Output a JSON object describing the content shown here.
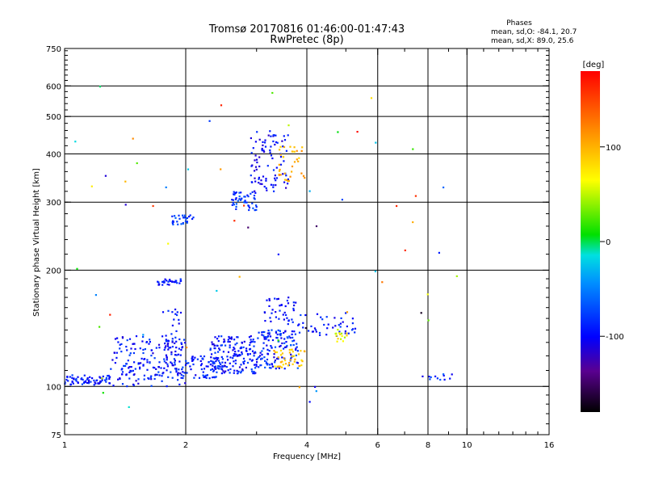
{
  "header": {
    "title_line1": "Tromsø 20170816 01:46:00-01:47:43",
    "title_line2": "RwPretec (8p)",
    "stats_title": "Phases",
    "stats_o": "mean, sd,O: -84.1, 20.7",
    "stats_x": "mean, sd,X: 89.0, 25.6"
  },
  "colorbar": {
    "unit_label": "[deg]",
    "range": [
      -180,
      180
    ],
    "ticks": [
      {
        "value": 100,
        "label": "100"
      },
      {
        "value": 0,
        "label": "0"
      },
      {
        "value": -100,
        "label": "-100"
      }
    ]
  },
  "chart_data": {
    "type": "scatter",
    "title": "Tromsø 20170816 01:46:00-01:47:43 RwPretec (8p)",
    "xlabel": "Frequency [MHz]",
    "ylabel": "Stationary phase Virtual Height [km]",
    "xscale": "log",
    "yscale": "log",
    "xlim": [
      1,
      16
    ],
    "ylim": [
      75,
      750
    ],
    "grid": true,
    "x_ticks": [
      1,
      2,
      4,
      6,
      8,
      10,
      16
    ],
    "x_tick_labels": [
      "1",
      "2",
      "4",
      "6",
      "8",
      "10",
      "16"
    ],
    "x_grid": [
      2,
      4,
      6,
      8,
      10
    ],
    "x_minor": [
      3,
      5,
      7,
      9,
      11,
      12,
      13,
      14,
      15
    ],
    "y_ticks": [
      75,
      100,
      200,
      300,
      400,
      500,
      600,
      750
    ],
    "y_tick_labels": [
      "75",
      "100",
      "200",
      "300",
      "400",
      "500",
      "600",
      "750"
    ],
    "y_grid": [
      100,
      200,
      300,
      400,
      500,
      600
    ],
    "color_value": "phase [deg]",
    "clusters": [
      {
        "x": [
          1.0,
          1.3
        ],
        "y": [
          101,
          107
        ],
        "phase": [
          -110,
          -70
        ],
        "n": 70
      },
      {
        "x": [
          1.3,
          2.0
        ],
        "y": [
          100,
          135
        ],
        "phase": [
          -115,
          -70
        ],
        "n": 190
      },
      {
        "x": [
          1.75,
          1.95
        ],
        "y": [
          110,
          160
        ],
        "phase": [
          -110,
          -75
        ],
        "n": 35
      },
      {
        "x": [
          1.7,
          1.95
        ],
        "y": [
          183,
          190
        ],
        "phase": [
          -110,
          -75
        ],
        "n": 30
      },
      {
        "x": [
          1.85,
          2.1
        ],
        "y": [
          262,
          278
        ],
        "phase": [
          -100,
          -60
        ],
        "n": 30
      },
      {
        "x": [
          2.0,
          2.4
        ],
        "y": [
          105,
          120
        ],
        "phase": [
          -110,
          -70
        ],
        "n": 60
      },
      {
        "x": [
          2.3,
          3.0
        ],
        "y": [
          108,
          135
        ],
        "phase": [
          -115,
          -70
        ],
        "n": 170
      },
      {
        "x": [
          3.0,
          3.8
        ],
        "y": [
          110,
          140
        ],
        "phase": [
          -115,
          -60
        ],
        "n": 130
      },
      {
        "x": [
          3.3,
          3.95
        ],
        "y": [
          112,
          125
        ],
        "phase": [
          70,
          110
        ],
        "n": 40
      },
      {
        "x": [
          2.6,
          3.0
        ],
        "y": [
          285,
          320
        ],
        "phase": [
          -100,
          -60
        ],
        "n": 50
      },
      {
        "x": [
          2.9,
          3.6
        ],
        "y": [
          320,
          460
        ],
        "phase": [
          -120,
          -80
        ],
        "n": 90
      },
      {
        "x": [
          3.4,
          4.0
        ],
        "y": [
          340,
          420
        ],
        "phase": [
          80,
          120
        ],
        "n": 35
      },
      {
        "x": [
          3.1,
          3.8
        ],
        "y": [
          145,
          170
        ],
        "phase": [
          -110,
          -80
        ],
        "n": 40
      },
      {
        "x": [
          3.8,
          5.3
        ],
        "y": [
          135,
          155
        ],
        "phase": [
          -110,
          -70
        ],
        "n": 45
      },
      {
        "x": [
          4.7,
          5.1
        ],
        "y": [
          130,
          142
        ],
        "phase": [
          40,
          90
        ],
        "n": 15
      },
      {
        "x": [
          7.6,
          9.2
        ],
        "y": [
          104,
          108
        ],
        "phase": [
          -110,
          -60
        ],
        "n": 12
      },
      {
        "x": [
          1.05,
          10.0
        ],
        "y": [
          80,
          600
        ],
        "phase": [
          -180,
          180
        ],
        "n": 60
      }
    ]
  }
}
